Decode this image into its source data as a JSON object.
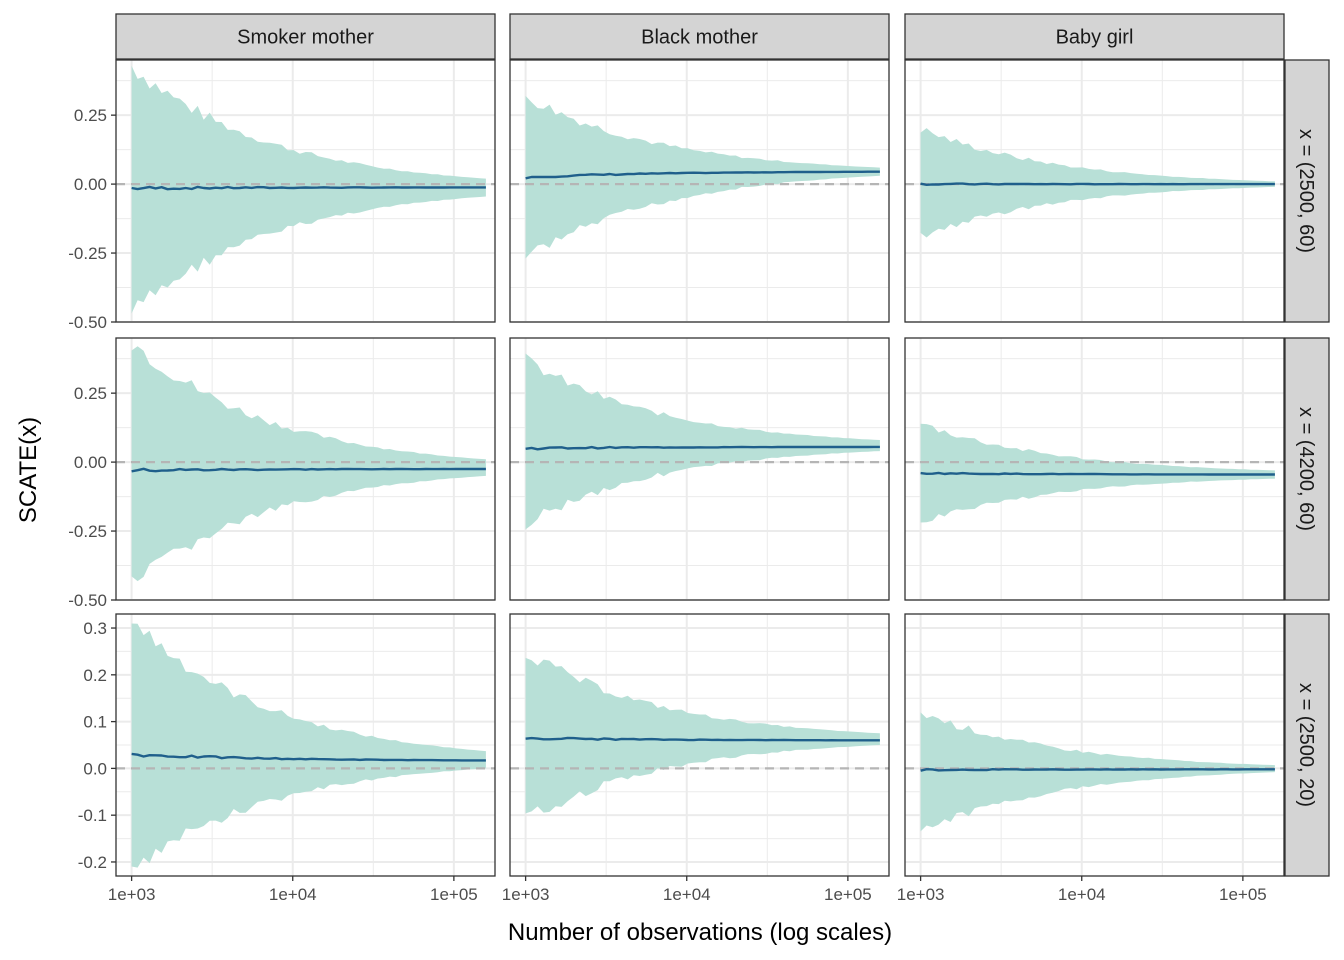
{
  "chart_data": {
    "type": "line",
    "xlabel": "Number of observations (log scales)",
    "ylabel": "SCATE(x)",
    "x_scale": "log10",
    "xlim": [
      800,
      180000
    ],
    "x_ticks": [
      1000,
      10000,
      100000
    ],
    "x_tick_labels": [
      "1e+03",
      "1e+04",
      "1e+05"
    ],
    "x_range": [
      1000,
      158000
    ],
    "grid": true,
    "legend": "none",
    "colors": {
      "line": "#1f5f8b",
      "ribbon": "#b8e0d7",
      "reference": "#b5b5b5",
      "strip_fill": "#d4d4d4",
      "grid": "#ebebeb",
      "border": "#333333"
    },
    "columns": [
      "Smoker mother",
      "Black mother",
      "Baby girl"
    ],
    "rows": [
      {
        "label": "x = (2500, 60)",
        "ylim": [
          -0.5,
          0.45
        ],
        "y_ticks": [
          -0.5,
          -0.25,
          0,
          0.25
        ],
        "y_tick_labels": [
          "-0.50",
          "-0.25",
          "0.00",
          "0.25"
        ],
        "panels": [
          {
            "estimate_start": -0.015,
            "estimate_end": -0.012,
            "lower_start": -0.47,
            "lower_end": -0.045,
            "upper_start": 0.43,
            "upper_end": 0.02
          },
          {
            "estimate_start": 0.025,
            "estimate_end": 0.045,
            "lower_start": -0.27,
            "lower_end": 0.03,
            "upper_start": 0.32,
            "upper_end": 0.06
          },
          {
            "estimate_start": 0.0,
            "estimate_end": 0.0,
            "lower_start": -0.19,
            "lower_end": -0.01,
            "upper_start": 0.2,
            "upper_end": 0.01
          }
        ]
      },
      {
        "label": "x = (4200, 60)",
        "ylim": [
          -0.5,
          0.45
        ],
        "y_ticks": [
          -0.5,
          -0.25,
          0,
          0.25
        ],
        "y_tick_labels": [
          "-0.50",
          "-0.25",
          "0.00",
          "0.25"
        ],
        "panels": [
          {
            "estimate_start": -0.03,
            "estimate_end": -0.025,
            "lower_start": -0.45,
            "lower_end": -0.05,
            "upper_start": 0.44,
            "upper_end": 0.01
          },
          {
            "estimate_start": 0.05,
            "estimate_end": 0.055,
            "lower_start": -0.22,
            "lower_end": 0.04,
            "upper_start": 0.37,
            "upper_end": 0.08
          },
          {
            "estimate_start": -0.04,
            "estimate_end": -0.045,
            "lower_start": -0.22,
            "lower_end": -0.06,
            "upper_start": 0.14,
            "upper_end": -0.03
          }
        ]
      },
      {
        "label": "x = (2500, 20)",
        "ylim": [
          -0.23,
          0.33
        ],
        "y_ticks": [
          -0.2,
          -0.1,
          0,
          0.1,
          0.2,
          0.3
        ],
        "y_tick_labels": [
          "-0.2",
          "-0.1",
          "0.0",
          "0.1",
          "0.2",
          "0.3"
        ],
        "panels": [
          {
            "estimate_start": 0.03,
            "estimate_end": 0.017,
            "lower_start": -0.22,
            "lower_end": 0.0,
            "upper_start": 0.32,
            "upper_end": 0.037
          },
          {
            "estimate_start": 0.065,
            "estimate_end": 0.06,
            "lower_start": -0.11,
            "lower_end": 0.05,
            "upper_start": 0.25,
            "upper_end": 0.075
          },
          {
            "estimate_start": -0.003,
            "estimate_end": -0.002,
            "lower_start": -0.135,
            "lower_end": -0.008,
            "upper_start": 0.12,
            "upper_end": 0.007
          }
        ]
      }
    ]
  }
}
